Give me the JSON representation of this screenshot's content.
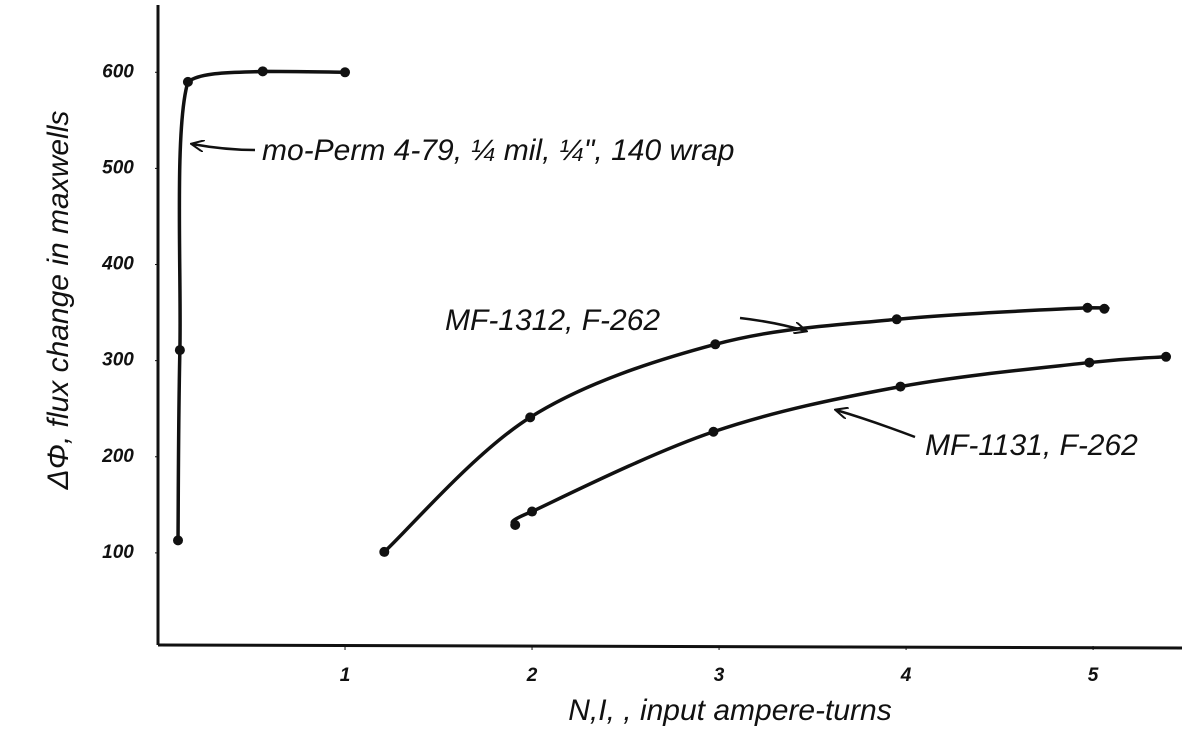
{
  "chart_data": {
    "type": "line",
    "y_label": "ΔΦ, flux change in maxwells",
    "x_label": "N,I, , input ampere-turns",
    "xlim": [
      0,
      5.47
    ],
    "ylim": [
      0,
      670
    ],
    "xticks": [
      1,
      2,
      3,
      4,
      5
    ],
    "yticks": [
      100,
      200,
      300,
      400,
      500,
      600
    ],
    "grid": false,
    "series": [
      {
        "name": "mo-Perm 4-79, ¼ mil, ¼\", 140 wrap",
        "color": "#111111",
        "x": [
          0.107,
          0.117,
          0.16,
          0.56,
          1.0
        ],
        "values": [
          113,
          311,
          590,
          601,
          600
        ]
      },
      {
        "name": "MF-1312, F-262",
        "color": "#111111",
        "x": [
          1.21,
          1.99,
          2.98,
          3.95,
          4.97,
          5.06
        ],
        "values": [
          101,
          241,
          317,
          343,
          355,
          354
        ]
      },
      {
        "name": "MF-1131, F-262",
        "color": "#111111",
        "x": [
          1.91,
          2.0,
          2.97,
          3.97,
          4.98,
          5.39
        ],
        "values": [
          129,
          143,
          226,
          273,
          298,
          304
        ]
      }
    ]
  }
}
